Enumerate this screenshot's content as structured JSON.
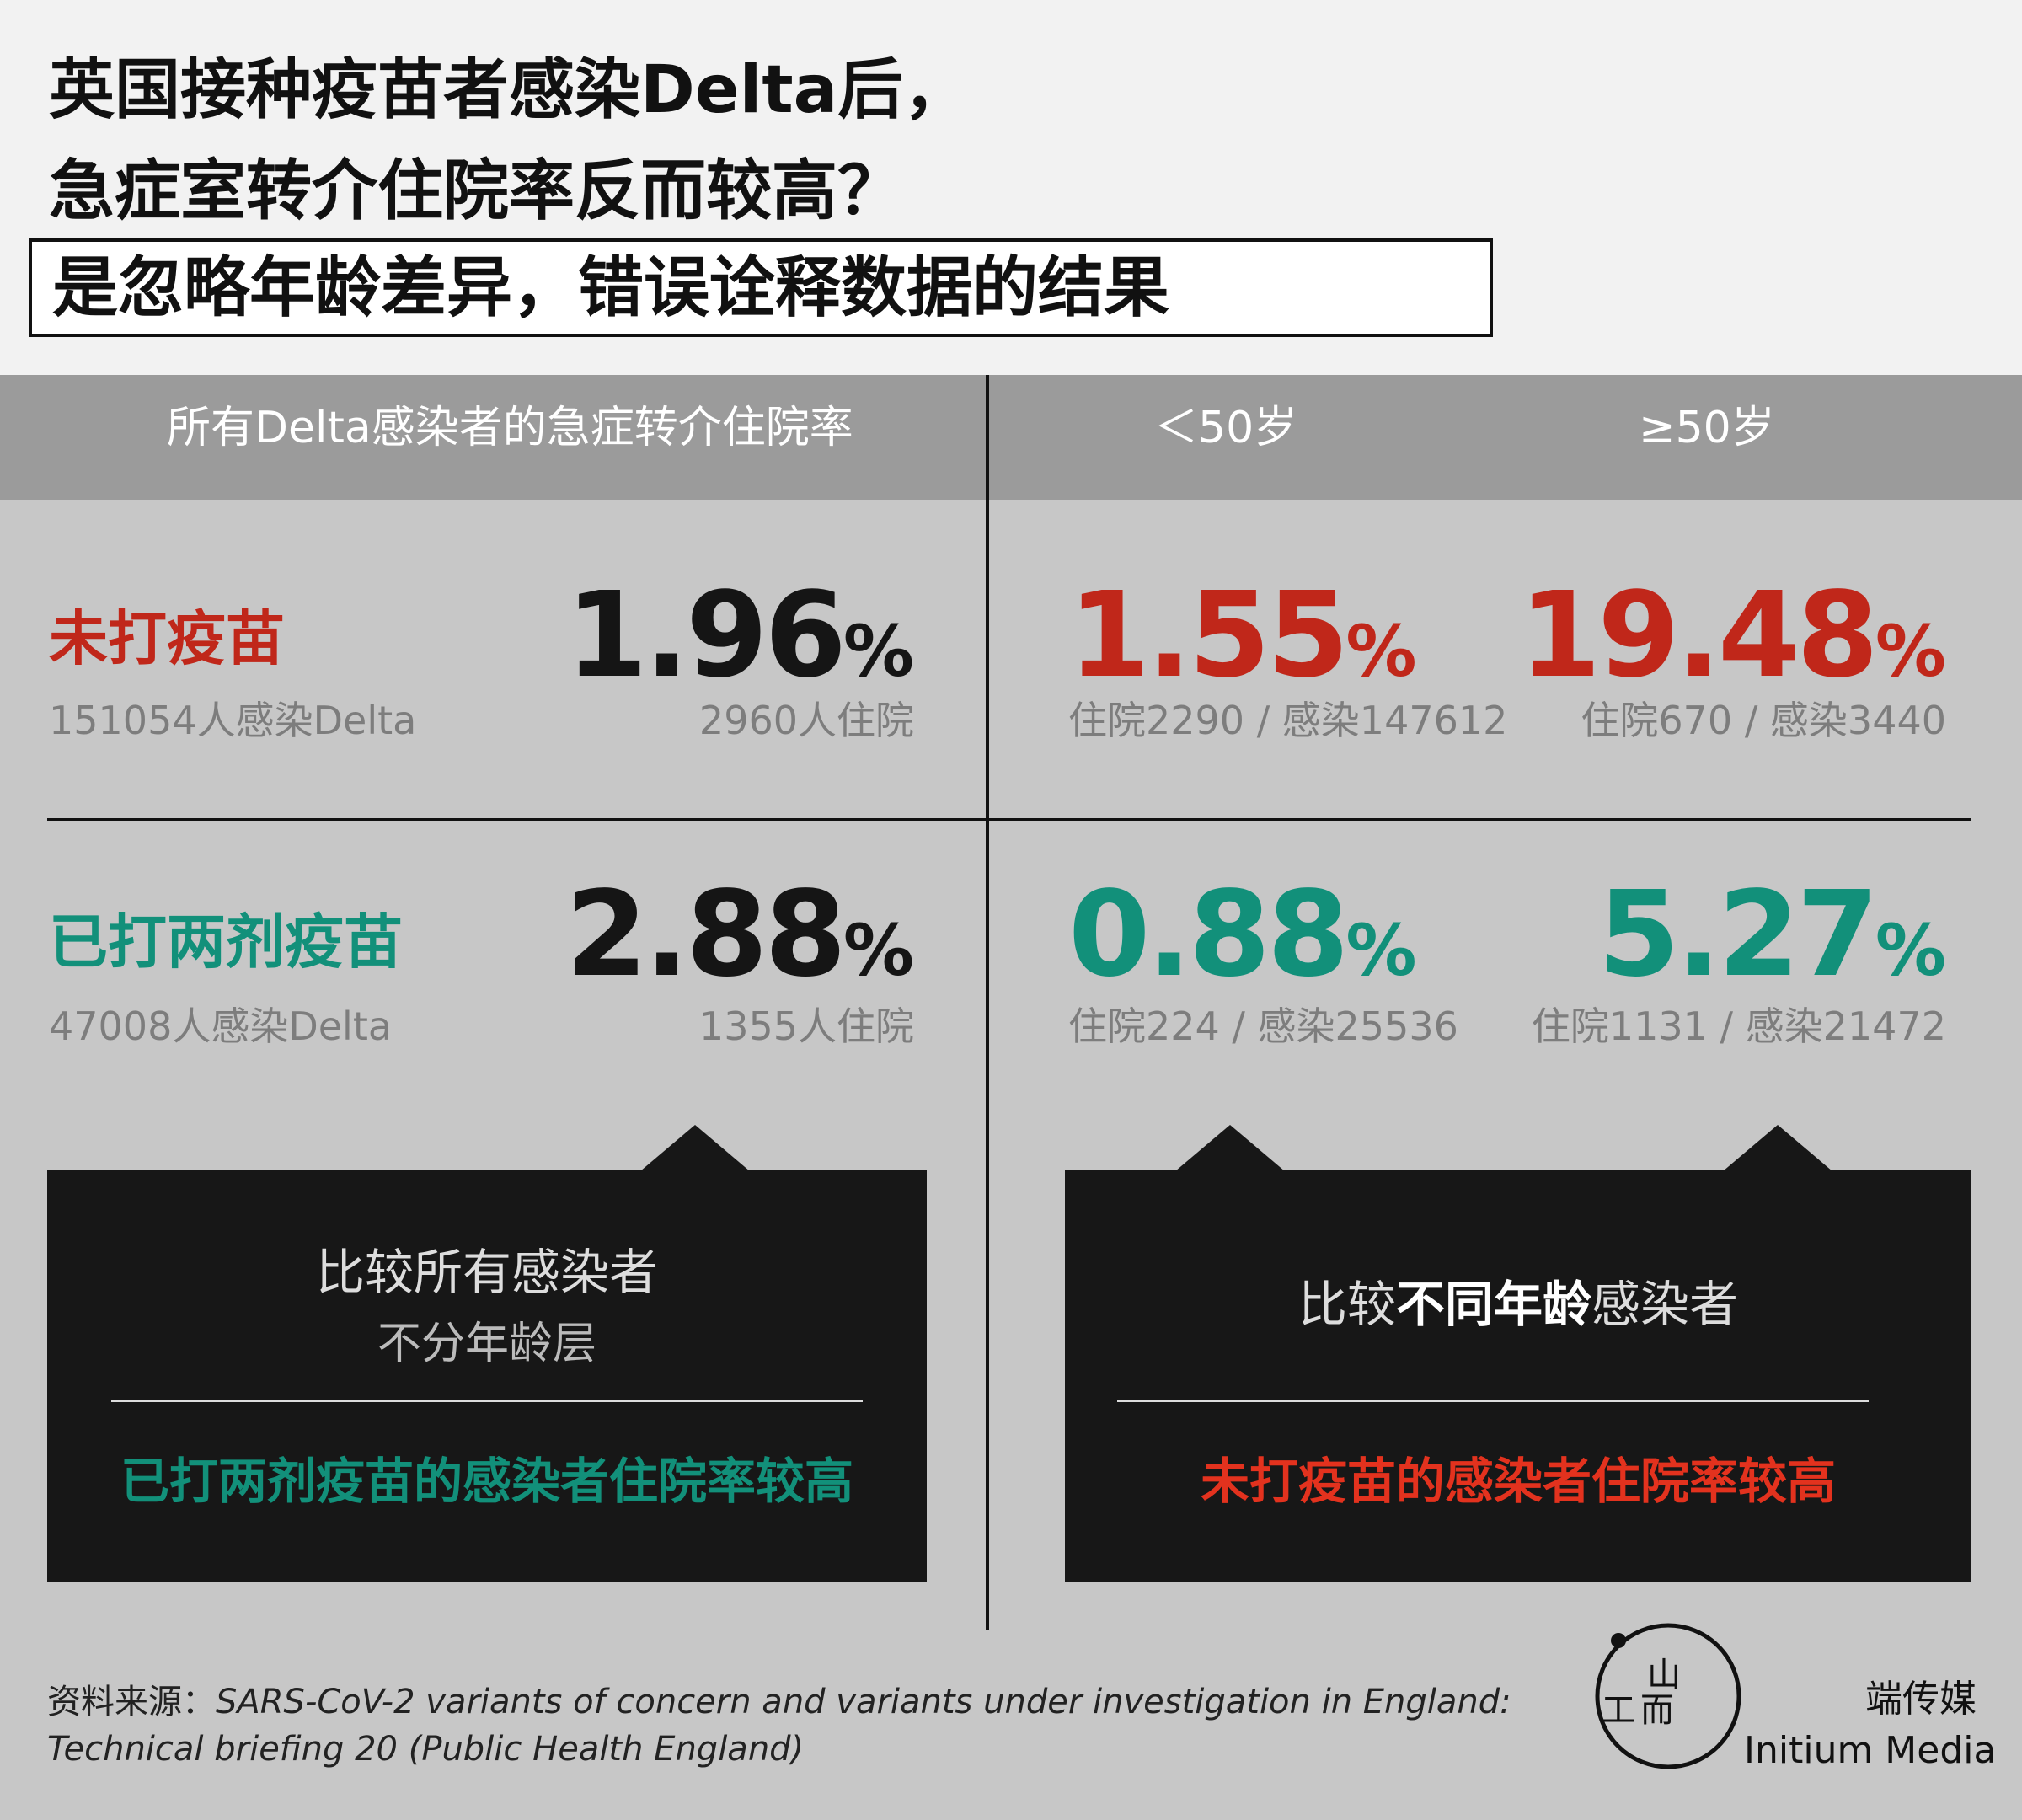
{
  "title_lines": [
    "英国接种疫苗者感染Delta后，",
    "急症室转介住院率反而较高？"
  ],
  "subtitle": "是忽略年龄差异，错误诠释数据的结果",
  "headers": {
    "all": "所有Delta感染者的急症转介住院率",
    "under50": "＜50岁",
    "over50": "≥50岁"
  },
  "colors": {
    "unvaccinated": "#c0271a",
    "vaccinated": "#12907a",
    "overall": "#151515"
  },
  "chart_data": {
    "type": "table",
    "columns": [
      "所有Delta感染者的急症转介住院率",
      "＜50岁",
      "≥50岁"
    ],
    "rows": [
      {
        "label": "未打疫苗",
        "all": {
          "rate": "1.96",
          "unit": "%",
          "infected_note": "151054人感染Delta",
          "hosp_note": "2960人住院"
        },
        "under50": {
          "rate": "1.55",
          "unit": "%",
          "note": "住院2290 / 感染147612"
        },
        "over50": {
          "rate": "19.48",
          "unit": "%",
          "note": "住院670 / 感染3440"
        }
      },
      {
        "label": "已打两剂疫苗",
        "all": {
          "rate": "2.88",
          "unit": "%",
          "infected_note": "47008人感染Delta",
          "hosp_note": "1355人住院"
        },
        "under50": {
          "rate": "0.88",
          "unit": "%",
          "note": "住院224 / 感染25536"
        },
        "over50": {
          "rate": "5.27",
          "unit": "%",
          "note": "住院1131 / 感染21472"
        }
      }
    ]
  },
  "callouts": {
    "left": {
      "line1": "比较所有感染者",
      "line2": "不分年龄层",
      "conclusion": "已打两剂疫苗的感染者住院率较高"
    },
    "right": {
      "pre": "比较",
      "bold": "不同年龄",
      "post": "感染者",
      "conclusion": "未打疫苗的感染者住院率较高"
    }
  },
  "source": {
    "label": "资料来源：",
    "text1": "SARS-CoV-2 variants of concern and  variants under investigation in  England:",
    "text2": "Technical briefing 20 (Public Health England)"
  },
  "brand": {
    "logo_glyphs": [
      "山",
      "工",
      "而"
    ],
    "zh": "端传媒",
    "en": "Initium Media"
  }
}
